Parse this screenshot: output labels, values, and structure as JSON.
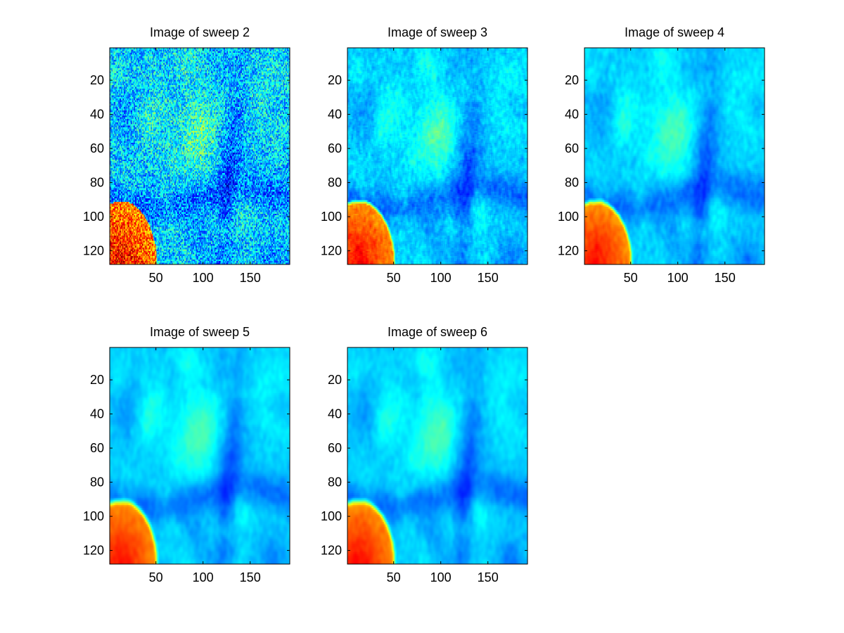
{
  "figure": {
    "background": "#ffffff"
  },
  "chart_data": [
    {
      "type": "heatmap",
      "title": "Image of sweep  2",
      "x_range": [
        1,
        192
      ],
      "y_range": [
        1,
        128
      ],
      "x_ticks": [
        50,
        100,
        150
      ],
      "y_ticks": [
        20,
        40,
        60,
        80,
        100,
        120
      ],
      "y_direction": "down",
      "colormap": "jet",
      "noise_level": 0.85,
      "blur_passes": 0
    },
    {
      "type": "heatmap",
      "title": "Image of sweep  3",
      "x_range": [
        1,
        192
      ],
      "y_range": [
        1,
        128
      ],
      "x_ticks": [
        50,
        100,
        150
      ],
      "y_ticks": [
        20,
        40,
        60,
        80,
        100,
        120
      ],
      "y_direction": "down",
      "colormap": "jet",
      "noise_level": 0.55,
      "blur_passes": 1
    },
    {
      "type": "heatmap",
      "title": "Image of sweep  4",
      "x_range": [
        1,
        192
      ],
      "y_range": [
        1,
        128
      ],
      "x_ticks": [
        50,
        100,
        150
      ],
      "y_ticks": [
        20,
        40,
        60,
        80,
        100,
        120
      ],
      "y_direction": "down",
      "colormap": "jet",
      "noise_level": 0.45,
      "blur_passes": 2
    },
    {
      "type": "heatmap",
      "title": "Image of sweep  5",
      "x_range": [
        1,
        192
      ],
      "y_range": [
        1,
        128
      ],
      "x_ticks": [
        50,
        100,
        150
      ],
      "y_ticks": [
        20,
        40,
        60,
        80,
        100,
        120
      ],
      "y_direction": "down",
      "colormap": "jet",
      "noise_level": 0.4,
      "blur_passes": 3
    },
    {
      "type": "heatmap",
      "title": "Image of sweep  6",
      "x_range": [
        1,
        192
      ],
      "y_range": [
        1,
        128
      ],
      "x_ticks": [
        50,
        100,
        150
      ],
      "y_ticks": [
        20,
        40,
        60,
        80,
        100,
        120
      ],
      "y_direction": "down",
      "colormap": "jet",
      "noise_level": 0.4,
      "blur_passes": 3
    }
  ]
}
